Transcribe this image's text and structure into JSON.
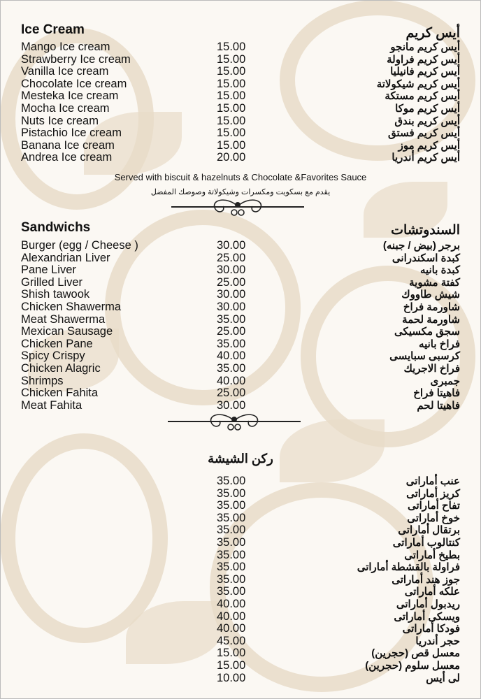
{
  "colors": {
    "background": "#fbf8f3",
    "pattern": "#e6d8c3",
    "text": "#111111"
  },
  "ice_cream": {
    "title_en": "Ice Cream",
    "title_ar": "أيس كريم",
    "items": [
      {
        "en": "Mango Ice cream",
        "price": "15.00",
        "ar": "أيس كريم مانجو"
      },
      {
        "en": "Strawberry Ice cream",
        "price": "15.00",
        "ar": "أيس كريم فراولة"
      },
      {
        "en": "Vanilla Ice cream",
        "price": "15.00",
        "ar": "أيس كريم فانيليا"
      },
      {
        "en": "Chocolate Ice cream",
        "price": "15.00",
        "ar": "أيس كريم شيكولاتة"
      },
      {
        "en": "Mesteka Ice cream",
        "price": "15.00",
        "ar": "أيس كريم مستكة"
      },
      {
        "en": "Mocha Ice cream",
        "price": "15.00",
        "ar": "أيس كريم موكا"
      },
      {
        "en": "Nuts Ice cream",
        "price": "15.00",
        "ar": "أيس كريم بندق"
      },
      {
        "en": "Pistachio Ice cream",
        "price": "15.00",
        "ar": "أيس كريم فستق"
      },
      {
        "en": "Banana Ice cream",
        "price": "15.00",
        "ar": "أيس كريم موز"
      },
      {
        "en": "Andrea Ice cream",
        "price": "20.00",
        "ar": "أيس كريم أندريا"
      }
    ],
    "note_en": "Served with biscuit & hazelnuts & Chocolate &Favorites Sauce",
    "note_ar": "يقدم مع بسكويت ومكسرات وشيكولاتة وصوصك المفضل"
  },
  "sandwiches": {
    "title_en": "Sandwichs",
    "title_ar": "السندوتشات",
    "items": [
      {
        "en": "Burger (egg / Cheese )",
        "price": "30.00",
        "ar": "برجر (بيض / جبنه)"
      },
      {
        "en": "Alexandrian Liver",
        "price": "25.00",
        "ar": "كبدة اسكندرانى"
      },
      {
        "en": "Pane Liver",
        "price": "30.00",
        "ar": "كبدة بانيه"
      },
      {
        "en": "Grilled Liver",
        "price": "25.00",
        "ar": "كفتة مشوية"
      },
      {
        "en": "Shish tawook",
        "price": "30.00",
        "ar": "شيش طاووك"
      },
      {
        "en": "Chicken Shawerma",
        "price": "30.00",
        "ar": "شاورمة فراخ"
      },
      {
        "en": "Meat Shawerma",
        "price": "35.00",
        "ar": "شاورمة لحمة"
      },
      {
        "en": "Mexican Sausage",
        "price": "25.00",
        "ar": "سجق مكسيكى"
      },
      {
        "en": "Chicken Pane",
        "price": "35.00",
        "ar": "فراخ بانيه"
      },
      {
        "en": "Spicy Crispy",
        "price": "40.00",
        "ar": "كرسبى سبايسى"
      },
      {
        "en": "Chicken Alagric",
        "price": "35.00",
        "ar": "فراخ الاجريك"
      },
      {
        "en": "Shrimps",
        "price": "40.00",
        "ar": "جمبرى"
      },
      {
        "en": "Chicken Fahita",
        "price": "25.00",
        "ar": "فاهيتا فراخ"
      },
      {
        "en": "Meat Fahita",
        "price": "30.00",
        "ar": "فاهيتا لحم"
      }
    ]
  },
  "shisha": {
    "title_ar": "ركن الشيشة",
    "items": [
      {
        "price": "35.00",
        "ar": "عنب أماراتى"
      },
      {
        "price": "35.00",
        "ar": "كريز أماراتى"
      },
      {
        "price": "35.00",
        "ar": "تفاح أماراتى"
      },
      {
        "price": "35.00",
        "ar": "خوخ أماراتى"
      },
      {
        "price": "35.00",
        "ar": "برتقال أماراتى"
      },
      {
        "price": "35.00",
        "ar": "كنتالوب أماراتى"
      },
      {
        "price": "35.00",
        "ar": "بطيخ أماراتى"
      },
      {
        "price": "35.00",
        "ar": "فراولة بالقشطة أماراتى"
      },
      {
        "price": "35.00",
        "ar": "جوز هند أماراتى"
      },
      {
        "price": "35.00",
        "ar": "علكه أماراتى"
      },
      {
        "price": "40.00",
        "ar": "ريدبول أماراتى"
      },
      {
        "price": "40.00",
        "ar": "ويسكى أماراتى"
      },
      {
        "price": "40.00",
        "ar": "فودكا أماراتى"
      },
      {
        "price": "45.00",
        "ar": "حجر أندريا"
      },
      {
        "price": "15.00",
        "ar": "معسل قص (حجرين)"
      },
      {
        "price": "15.00",
        "ar": "معسل سلوم (حجرين)"
      },
      {
        "price": "10.00",
        "ar": "لى أيس"
      }
    ]
  }
}
